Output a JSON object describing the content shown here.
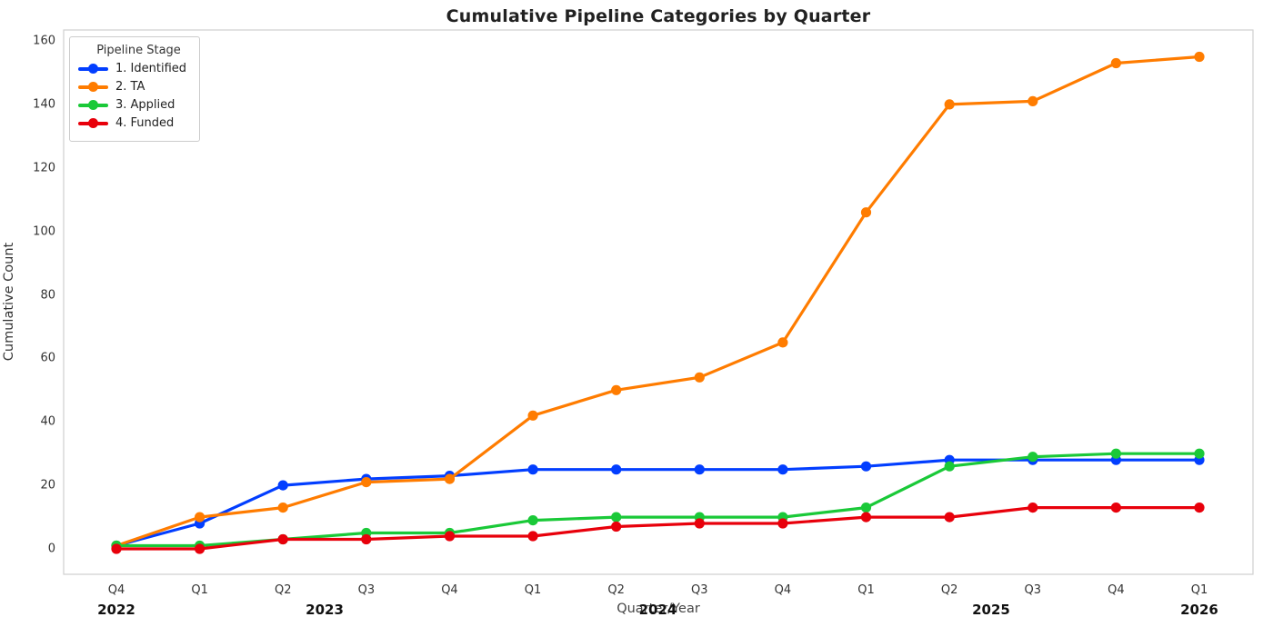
{
  "page": {
    "title": "Cumulative Pipeline Categories by Quarter"
  },
  "chart_data": {
    "type": "line",
    "title": "Cumulative Pipeline Categories by Quarter",
    "xlabel": "Quarter/Year",
    "ylabel": "Cumulative Count",
    "ylim": [
      0,
      160
    ],
    "ytick_step": 20,
    "grid": false,
    "legend": {
      "title": "Pipeline Stage",
      "position": "upper left"
    },
    "categories": [
      {
        "quarter": "Q4",
        "year": "2022"
      },
      {
        "quarter": "Q1",
        "year": "2023"
      },
      {
        "quarter": "Q2",
        "year": "2023"
      },
      {
        "quarter": "Q3",
        "year": "2023"
      },
      {
        "quarter": "Q4",
        "year": "2023"
      },
      {
        "quarter": "Q1",
        "year": "2024"
      },
      {
        "quarter": "Q2",
        "year": "2024"
      },
      {
        "quarter": "Q3",
        "year": "2024"
      },
      {
        "quarter": "Q4",
        "year": "2024"
      },
      {
        "quarter": "Q1",
        "year": "2025"
      },
      {
        "quarter": "Q2",
        "year": "2025"
      },
      {
        "quarter": "Q3",
        "year": "2025"
      },
      {
        "quarter": "Q4",
        "year": "2025"
      },
      {
        "quarter": "Q1",
        "year": "2026"
      }
    ],
    "series": [
      {
        "name": "1. Identified",
        "color": "#023EFF",
        "values": [
          1,
          8,
          20,
          22,
          23,
          25,
          25,
          25,
          25,
          26,
          28,
          28,
          28,
          28
        ]
      },
      {
        "name": "2. TA",
        "color": "#FF7C00",
        "values": [
          1,
          10,
          13,
          21,
          22,
          42,
          50,
          54,
          65,
          106,
          140,
          141,
          153,
          155
        ]
      },
      {
        "name": "3. Applied",
        "color": "#1AC938",
        "values": [
          1,
          1,
          3,
          5,
          5,
          9,
          10,
          10,
          10,
          13,
          26,
          29,
          30,
          30
        ]
      },
      {
        "name": "4. Funded",
        "color": "#E8000B",
        "values": [
          0,
          0,
          3,
          3,
          4,
          4,
          7,
          8,
          8,
          10,
          10,
          13,
          13,
          13
        ]
      }
    ]
  }
}
